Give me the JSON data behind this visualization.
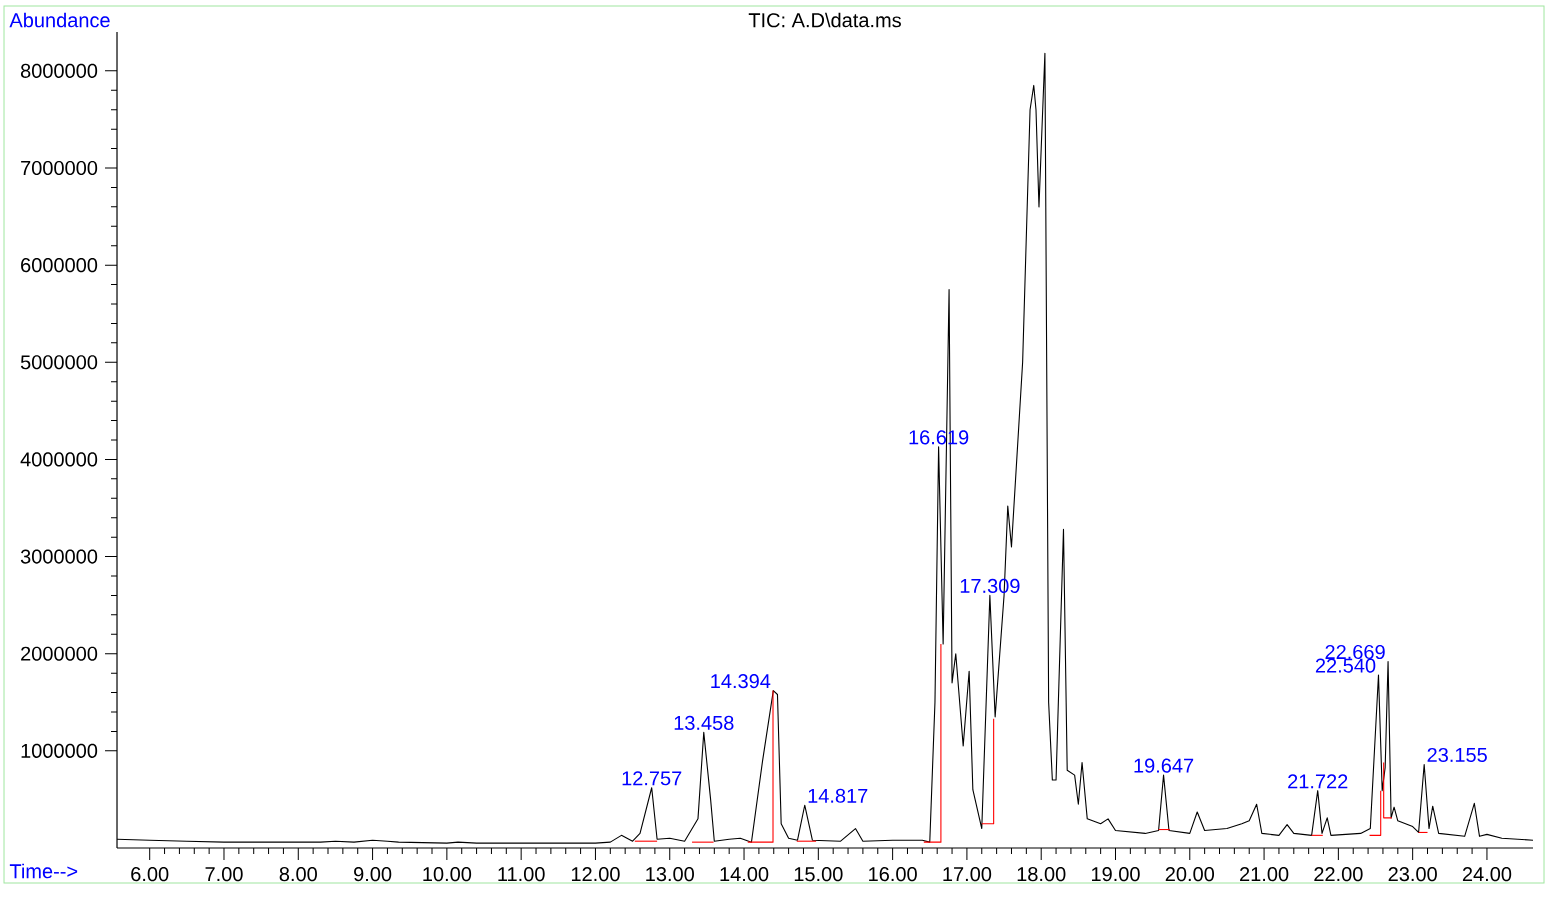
{
  "chart_data": {
    "type": "line",
    "title": "TIC: A.D\\data.ms",
    "xlabel": "Time-->",
    "ylabel": "Abundance",
    "xlim": [
      5.56,
      24.62
    ],
    "ylim": [
      0,
      8400000
    ],
    "xticks": [
      {
        "value": 6,
        "label": "6.00"
      },
      {
        "value": 7,
        "label": "7.00"
      },
      {
        "value": 8,
        "label": "8.00"
      },
      {
        "value": 9,
        "label": "9.00"
      },
      {
        "value": 10,
        "label": "10.00"
      },
      {
        "value": 11,
        "label": "11.00"
      },
      {
        "value": 12,
        "label": "12.00"
      },
      {
        "value": 13,
        "label": "13.00"
      },
      {
        "value": 14,
        "label": "14.00"
      },
      {
        "value": 15,
        "label": "15.00"
      },
      {
        "value": 16,
        "label": "16.00"
      },
      {
        "value": 17,
        "label": "17.00"
      },
      {
        "value": 18,
        "label": "18.00"
      },
      {
        "value": 19,
        "label": "19.00"
      },
      {
        "value": 20,
        "label": "20.00"
      },
      {
        "value": 21,
        "label": "21.00"
      },
      {
        "value": 22,
        "label": "22.00"
      },
      {
        "value": 23,
        "label": "23.00"
      },
      {
        "value": 24,
        "label": "24.00"
      }
    ],
    "yticks": [
      1000000,
      2000000,
      3000000,
      4000000,
      5000000,
      6000000,
      7000000,
      8000000
    ],
    "series": [
      {
        "type": "line",
        "color": "#000000",
        "x": [
          5.56,
          6.0,
          6.5,
          7.0,
          7.5,
          8.0,
          8.3,
          8.5,
          8.75,
          9.0,
          9.2,
          9.35,
          10.0,
          10.15,
          10.4,
          11.0,
          12.0,
          12.2,
          12.35,
          12.5,
          12.6,
          12.757,
          12.83,
          13.0,
          13.2,
          13.38,
          13.458,
          13.55,
          13.6,
          13.8,
          13.95,
          14.1,
          14.25,
          14.394,
          14.45,
          14.5,
          14.6,
          14.72,
          14.817,
          14.92,
          15.3,
          15.5,
          15.6,
          16.0,
          16.4,
          16.5,
          16.57,
          16.619,
          16.68,
          16.76,
          16.8,
          16.85,
          16.95,
          17.03,
          17.08,
          17.2,
          17.309,
          17.38,
          17.5,
          17.55,
          17.6,
          17.75,
          17.85,
          17.9,
          17.93,
          17.97,
          18.0,
          18.05,
          18.1,
          18.15,
          18.2,
          18.3,
          18.35,
          18.45,
          18.5,
          18.55,
          18.62,
          18.8,
          18.9,
          19.0,
          19.4,
          19.58,
          19.647,
          19.72,
          20.0,
          20.1,
          20.2,
          20.5,
          20.7,
          20.8,
          20.9,
          20.97,
          21.2,
          21.31,
          21.4,
          21.64,
          21.722,
          21.78,
          21.85,
          21.9,
          22.3,
          22.43,
          22.54,
          22.59,
          22.63,
          22.669,
          22.71,
          22.75,
          22.8,
          23.0,
          23.08,
          23.155,
          23.22,
          23.27,
          23.35,
          23.7,
          23.83,
          23.9,
          24.0,
          24.2,
          24.62
        ],
        "values": [
          90000,
          80000,
          70000,
          60000,
          60000,
          60000,
          60000,
          70000,
          60000,
          80000,
          70000,
          60000,
          50000,
          60000,
          50000,
          50000,
          50000,
          60000,
          130000,
          70000,
          150000,
          620000,
          90000,
          100000,
          70000,
          300000,
          1190000,
          500000,
          70000,
          90000,
          100000,
          60000,
          900000,
          1620000,
          1580000,
          250000,
          100000,
          80000,
          440000,
          80000,
          70000,
          200000,
          70000,
          80000,
          80000,
          60000,
          1500000,
          4130000,
          2100000,
          5750000,
          1700000,
          2000000,
          1050000,
          1820000,
          600000,
          200000,
          2600000,
          1350000,
          2600000,
          3520000,
          3100000,
          5000000,
          7600000,
          7850000,
          7600000,
          6600000,
          7200000,
          8180000,
          1500000,
          700000,
          700000,
          3280000,
          800000,
          750000,
          450000,
          880000,
          300000,
          250000,
          300000,
          180000,
          150000,
          180000,
          750000,
          180000,
          150000,
          370000,
          180000,
          200000,
          250000,
          280000,
          450000,
          150000,
          130000,
          240000,
          150000,
          130000,
          590000,
          150000,
          310000,
          130000,
          150000,
          200000,
          1780000,
          590000,
          830000,
          1920000,
          310000,
          420000,
          280000,
          220000,
          160000,
          860000,
          200000,
          430000,
          150000,
          120000,
          460000,
          120000,
          140000,
          100000,
          80000
        ]
      },
      {
        "type": "line",
        "color": "#ff0000",
        "x": [
          12.53,
          12.83
        ],
        "values": [
          70000,
          70000
        ]
      },
      {
        "type": "line",
        "color": "#ff0000",
        "x": [
          13.3,
          13.59
        ],
        "values": [
          60000,
          60000
        ]
      },
      {
        "type": "line",
        "color": "#ff0000",
        "x": [
          14.05,
          14.39,
          14.39
        ],
        "values": [
          60000,
          60000,
          1620000
        ]
      },
      {
        "type": "line",
        "color": "#ff0000",
        "x": [
          14.71,
          14.97
        ],
        "values": [
          70000,
          70000
        ]
      },
      {
        "type": "line",
        "color": "#ff0000",
        "x": [
          16.42,
          16.65,
          16.65
        ],
        "values": [
          60000,
          60000,
          2100000
        ]
      },
      {
        "type": "line",
        "color": "#ff0000",
        "x": [
          17.2,
          17.36,
          17.36
        ],
        "values": [
          250000,
          250000,
          1330000
        ]
      },
      {
        "type": "line",
        "color": "#ff0000",
        "x": [
          19.58,
          19.73
        ],
        "values": [
          190000,
          190000
        ]
      },
      {
        "type": "line",
        "color": "#ff0000",
        "x": [
          21.64,
          21.79
        ],
        "values": [
          130000,
          130000
        ]
      },
      {
        "type": "line",
        "color": "#ff0000",
        "x": [
          22.42,
          22.57,
          22.57
        ],
        "values": [
          130000,
          130000,
          590000
        ]
      },
      {
        "type": "line",
        "color": "#ff0000",
        "x": [
          22.61,
          22.61,
          22.72
        ],
        "values": [
          880000,
          310000,
          310000
        ]
      },
      {
        "type": "line",
        "color": "#ff0000",
        "x": [
          23.08,
          23.2
        ],
        "values": [
          160000,
          160000
        ]
      }
    ],
    "annotations": [
      {
        "text": "12.757",
        "x": 12.757,
        "y": 620000
      },
      {
        "text": "13.458",
        "x": 13.458,
        "y": 1190000
      },
      {
        "text": "14.394",
        "x": 14.394,
        "y": 1620000
      },
      {
        "text": "14.817",
        "x": 14.817,
        "y": 440000
      },
      {
        "text": "16.619",
        "x": 16.619,
        "y": 4130000
      },
      {
        "text": "17.309",
        "x": 17.309,
        "y": 2600000
      },
      {
        "text": "19.647",
        "x": 19.647,
        "y": 750000
      },
      {
        "text": "21.722",
        "x": 21.722,
        "y": 590000
      },
      {
        "text": "22.540",
        "x": 22.54,
        "y": 1780000
      },
      {
        "text": "22.669",
        "x": 22.669,
        "y": 1920000
      },
      {
        "text": "23.155",
        "x": 23.155,
        "y": 860000
      }
    ]
  }
}
